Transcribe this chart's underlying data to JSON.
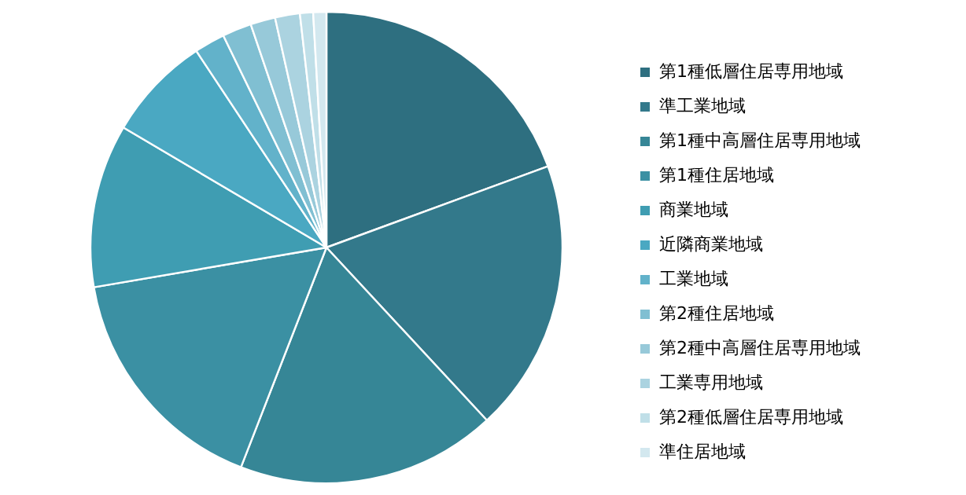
{
  "chart_data": {
    "type": "pie",
    "categories": [
      "第1種低層住居専用地域",
      "準工業地域",
      "第1種中高層住居専用地域",
      "第1種住居地域",
      "商業地域",
      "近隣商業地域",
      "工業地域",
      "第2種住居地域",
      "第2種中高層住居専用地域",
      "工業専用地域",
      "第2種低層住居専用地域",
      "準住居地域"
    ],
    "values": [
      19.4,
      18.7,
      17.8,
      16.4,
      11.2,
      7.2,
      2.1,
      2.0,
      1.7,
      1.7,
      0.9,
      0.9
    ],
    "colors": [
      "#2e6f80",
      "#33798b",
      "#368696",
      "#3b90a3",
      "#3f9db2",
      "#4aa8c2",
      "#62b2ca",
      "#80bfd2",
      "#97c9d9",
      "#abd3e0",
      "#c0dfe8",
      "#d3e8ef"
    ],
    "legend": "right"
  }
}
